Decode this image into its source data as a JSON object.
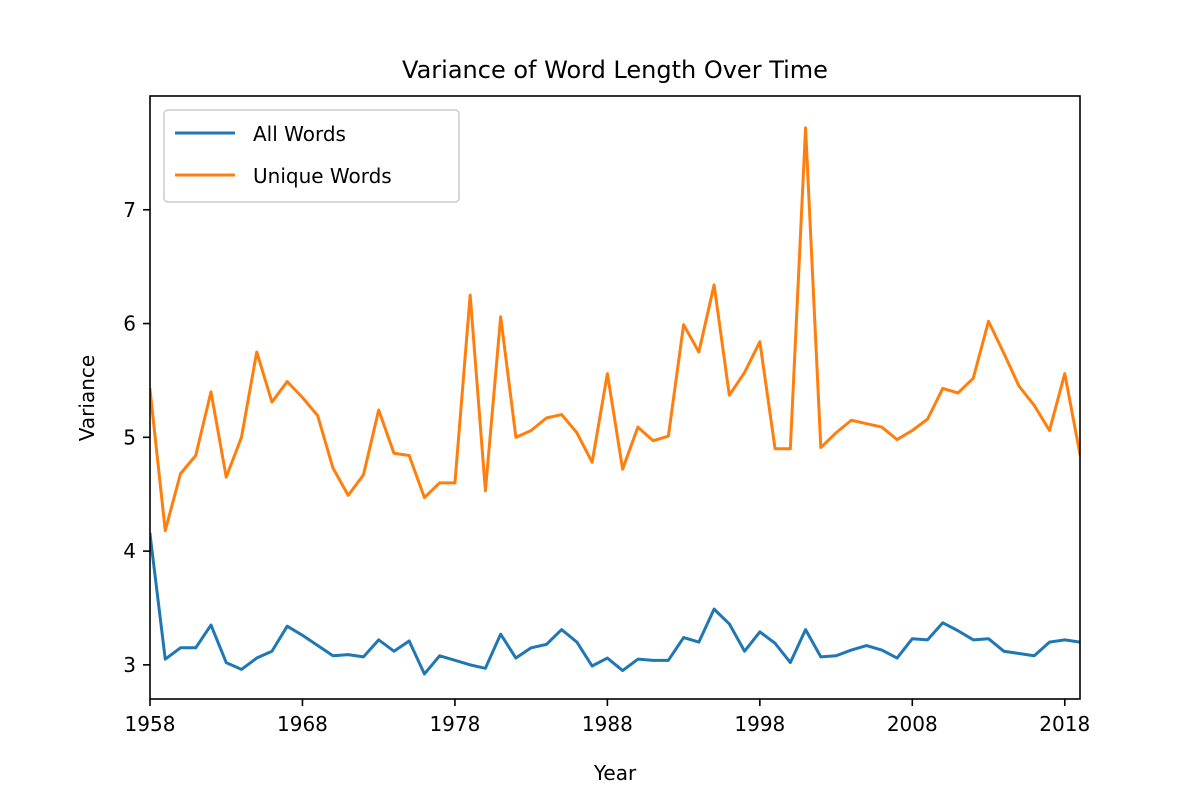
{
  "chart_data": {
    "type": "line",
    "title": "Variance of Word Length Over Time",
    "xlabel": "Year",
    "ylabel": "Variance",
    "xlim": [
      1958,
      2019
    ],
    "ylim": [
      2.7,
      8.0
    ],
    "xticks": [
      1958,
      1968,
      1978,
      1988,
      1998,
      2008,
      2018
    ],
    "yticks": [
      3,
      4,
      5,
      6,
      7
    ],
    "grid": false,
    "legend": "upper-left",
    "x": [
      1958,
      1959,
      1960,
      1961,
      1962,
      1963,
      1964,
      1965,
      1966,
      1967,
      1968,
      1969,
      1970,
      1971,
      1972,
      1973,
      1974,
      1975,
      1976,
      1977,
      1978,
      1979,
      1980,
      1981,
      1982,
      1983,
      1984,
      1985,
      1986,
      1987,
      1988,
      1989,
      1990,
      1991,
      1992,
      1993,
      1994,
      1995,
      1996,
      1997,
      1998,
      1999,
      2000,
      2001,
      2002,
      2003,
      2004,
      2005,
      2006,
      2007,
      2008,
      2009,
      2010,
      2011,
      2012,
      2013,
      2014,
      2015,
      2016,
      2017,
      2018,
      2019
    ],
    "series": [
      {
        "name": "All Words",
        "color": "#1f77b4",
        "values": [
          4.15,
          3.05,
          3.15,
          3.15,
          3.35,
          3.02,
          2.96,
          3.06,
          3.12,
          3.34,
          3.26,
          3.17,
          3.08,
          3.09,
          3.07,
          3.22,
          3.12,
          3.21,
          2.92,
          3.08,
          3.04,
          3.0,
          2.97,
          3.27,
          3.06,
          3.15,
          3.18,
          3.31,
          3.2,
          2.99,
          3.06,
          2.95,
          3.05,
          3.04,
          3.04,
          3.24,
          3.2,
          3.49,
          3.36,
          3.12,
          3.29,
          3.19,
          3.02,
          3.31,
          3.07,
          3.08,
          3.13,
          3.17,
          3.13,
          3.06,
          3.23,
          3.22,
          3.37,
          3.3,
          3.22,
          3.23,
          3.12,
          3.1,
          3.08,
          3.2,
          3.22,
          3.2
        ]
      },
      {
        "name": "Unique Words",
        "color": "#ff7f0e",
        "values": [
          5.42,
          4.18,
          4.68,
          4.84,
          5.4,
          4.65,
          5.0,
          5.75,
          5.31,
          5.49,
          5.35,
          5.19,
          4.73,
          4.49,
          4.67,
          5.24,
          4.86,
          4.84,
          4.47,
          4.6,
          4.6,
          6.25,
          4.53,
          6.06,
          5.0,
          5.06,
          5.17,
          5.2,
          5.04,
          4.78,
          5.56,
          4.72,
          5.09,
          4.97,
          5.01,
          5.99,
          5.75,
          6.34,
          5.37,
          5.57,
          5.84,
          4.9,
          4.9,
          7.72,
          4.91,
          5.04,
          5.15,
          5.12,
          5.09,
          4.98,
          5.06,
          5.16,
          5.43,
          5.39,
          5.52,
          6.02,
          5.74,
          5.45,
          5.28,
          5.06,
          5.56,
          4.85
        ]
      }
    ]
  }
}
